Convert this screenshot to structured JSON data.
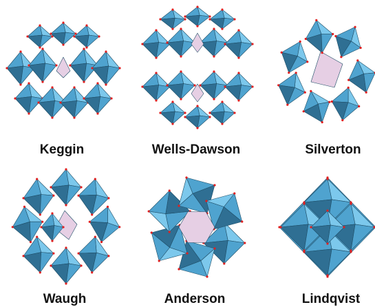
{
  "figure": {
    "panels": [
      {
        "id": "keggin",
        "label": "Keggin",
        "shape": "keggin"
      },
      {
        "id": "wells-dawson",
        "label": "Wells-Dawson",
        "shape": "dawson"
      },
      {
        "id": "silverton",
        "label": "Silverton",
        "shape": "silverton"
      },
      {
        "id": "waugh",
        "label": "Waugh",
        "shape": "waugh"
      },
      {
        "id": "anderson",
        "label": "Anderson",
        "shape": "anderson"
      },
      {
        "id": "lindqvist",
        "label": "Lindqvist",
        "shape": "lindqvist"
      }
    ],
    "colors": {
      "polyhedron_light": "#7cc8ec",
      "polyhedron_mid": "#4fa3cf",
      "polyhedron_dark": "#2f6f93",
      "polyhedron_edge": "#1e4d66",
      "heteroatom": "#e6cfe4",
      "oxygen_vertex": "#e02020"
    }
  }
}
